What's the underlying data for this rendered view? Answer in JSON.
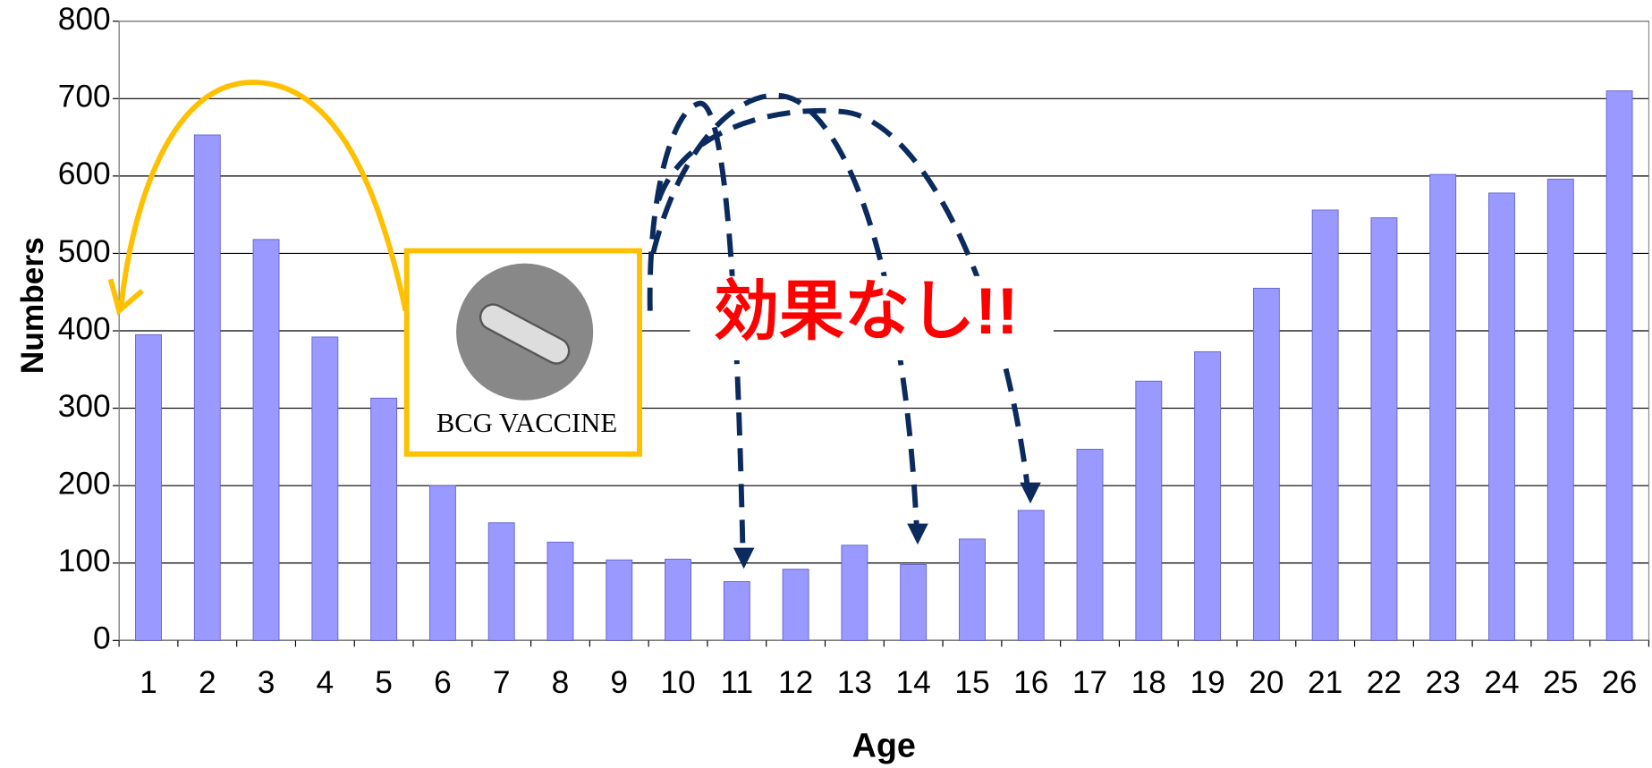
{
  "chart_data": {
    "type": "bar",
    "xlabel": "Age",
    "ylabel": "Numbers",
    "categories": [
      "1",
      "2",
      "3",
      "4",
      "5",
      "6",
      "7",
      "8",
      "9",
      "10",
      "11",
      "12",
      "13",
      "14",
      "15",
      "16",
      "17",
      "18",
      "19",
      "20",
      "21",
      "22",
      "23",
      "24",
      "25",
      "26"
    ],
    "values": [
      395,
      653,
      518,
      392,
      313,
      200,
      152,
      127,
      104,
      105,
      76,
      92,
      123,
      98,
      131,
      168,
      247,
      335,
      373,
      455,
      556,
      546,
      602,
      578,
      596,
      710
    ],
    "color": "#9999ff",
    "ylim": [
      0,
      800
    ],
    "yticks": [
      0,
      100,
      200,
      300,
      400,
      500,
      600,
      700,
      800
    ],
    "grid": true,
    "annotations": [
      "BCG VACCINE",
      "効果なし!!"
    ]
  }
}
